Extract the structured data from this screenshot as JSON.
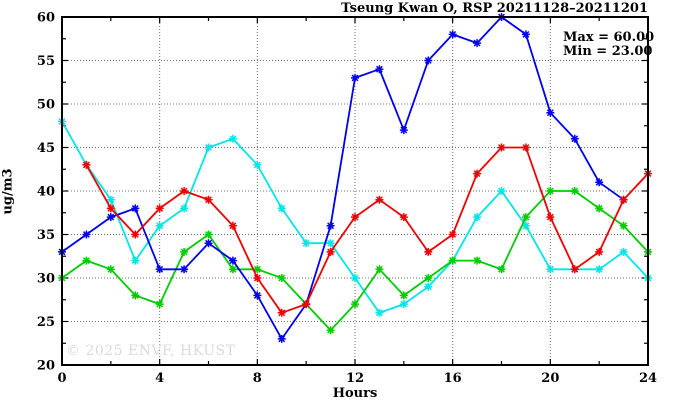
{
  "title": "Tseung Kwan O, RSP 20211128–20211201",
  "watermark": "© 2025 ENVF, HKUST",
  "chart_data": {
    "type": "line",
    "title": "Tseung Kwan O, RSP 20211128–20211201",
    "xlabel": "Hours",
    "ylabel": "ug/m3",
    "xlim": [
      0,
      24
    ],
    "ylim": [
      20,
      60
    ],
    "x_major_ticks": [
      0,
      4,
      8,
      12,
      16,
      20,
      24
    ],
    "x_minor_ticks": [
      2,
      6,
      10,
      14,
      18,
      22
    ],
    "y_major_ticks": [
      20,
      25,
      30,
      35,
      40,
      45,
      50,
      55,
      60
    ],
    "y_minor_ticks": [
      22.5,
      27.5,
      32.5,
      37.5,
      42.5,
      47.5,
      52.5,
      57.5
    ],
    "grid": true,
    "legend_position": "none",
    "annotations": [
      "Max = 60.00",
      "Min = 23.00"
    ],
    "marker": "asterisk",
    "x": [
      0,
      1,
      2,
      3,
      4,
      5,
      6,
      7,
      8,
      9,
      10,
      11,
      12,
      13,
      14,
      15,
      16,
      17,
      18,
      19,
      20,
      21,
      22,
      23,
      24
    ],
    "series": [
      {
        "name": "series-cyan",
        "color": "#00e5e5",
        "values": [
          48,
          43,
          39,
          32,
          36,
          38,
          45,
          46,
          43,
          38,
          34,
          34,
          30,
          26,
          27,
          29,
          32,
          37,
          40,
          36,
          31,
          31,
          31,
          33,
          30
        ]
      },
      {
        "name": "series-green",
        "color": "#00cc00",
        "values": [
          30,
          32,
          31,
          28,
          27,
          33,
          35,
          31,
          31,
          30,
          27,
          24,
          27,
          31,
          28,
          30,
          32,
          32,
          31,
          37,
          40,
          40,
          38,
          36,
          33
        ]
      },
      {
        "name": "series-blue",
        "color": "#0000ee",
        "values": [
          33,
          35,
          37,
          38,
          31,
          31,
          34,
          32,
          28,
          23,
          27,
          36,
          53,
          54,
          47,
          55,
          58,
          57,
          60,
          58,
          49,
          46,
          41,
          39,
          null
        ]
      },
      {
        "name": "series-red",
        "color": "#ee0000",
        "values": [
          null,
          43,
          38,
          35,
          38,
          40,
          39,
          36,
          30,
          26,
          27,
          33,
          37,
          39,
          37,
          33,
          35,
          42,
          45,
          45,
          37,
          31,
          33,
          39,
          42
        ]
      }
    ]
  },
  "max_annotation": "Max = 60.00",
  "min_annotation": "Min = 23.00"
}
